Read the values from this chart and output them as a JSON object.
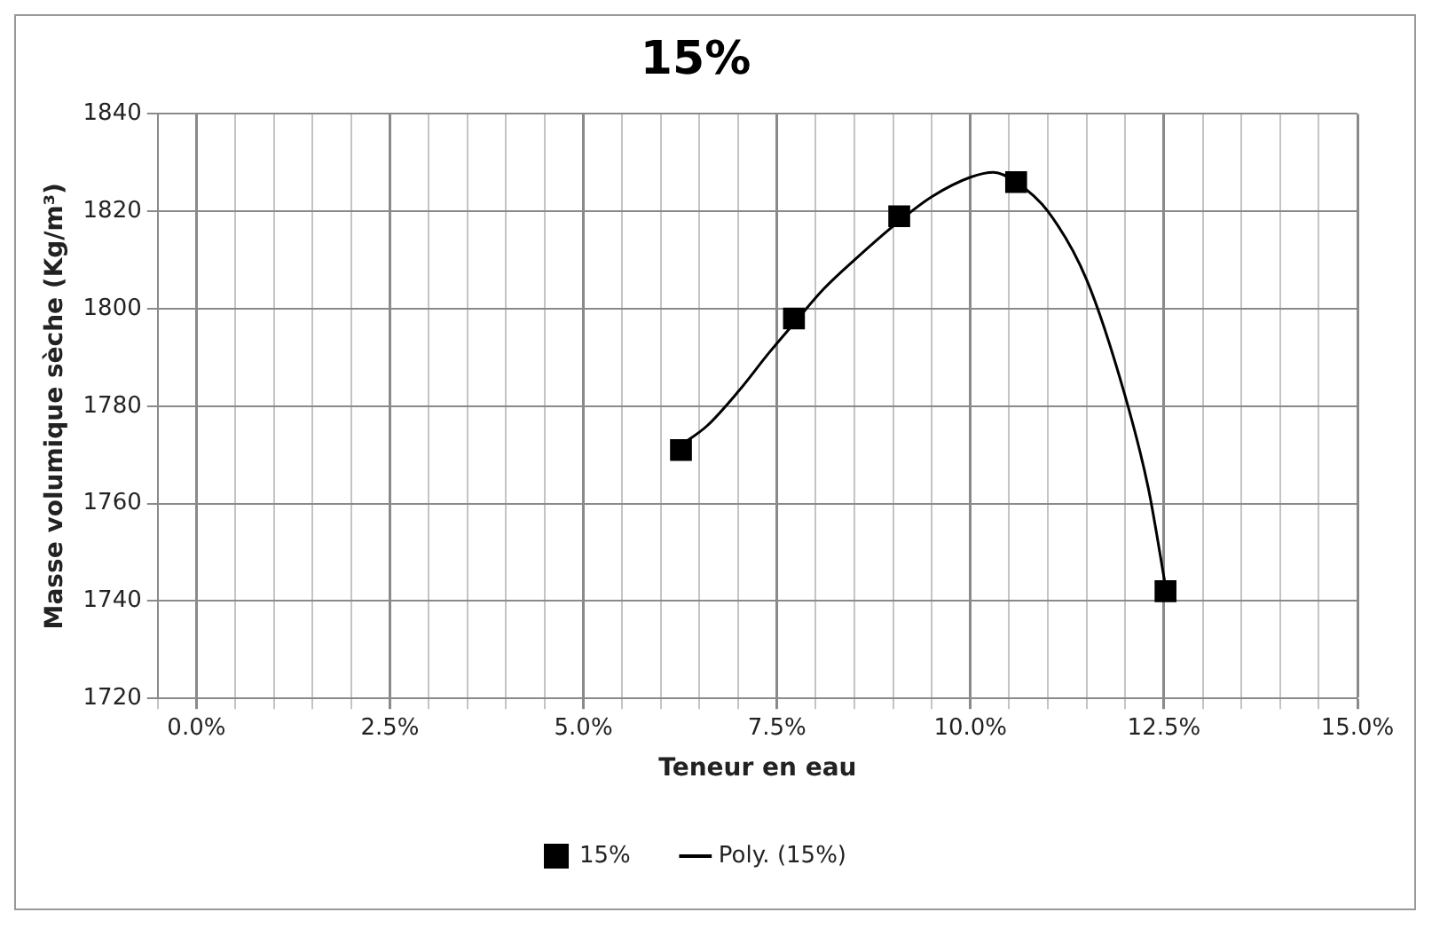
{
  "chart_data": {
    "type": "scatter",
    "title": "15%",
    "xlabel": "Teneur en eau",
    "ylabel": "Masse volumique sèche (Kg/m³)",
    "xlim": [
      -0.5,
      15
    ],
    "xticks": [
      {
        "value": -0.5,
        "label": null
      },
      {
        "value": 0,
        "label": "0.0%"
      },
      {
        "value": 0.5,
        "label": null
      },
      {
        "value": 1,
        "label": null
      },
      {
        "value": 1.5,
        "label": null
      },
      {
        "value": 2,
        "label": null
      },
      {
        "value": 2.5,
        "label": "2.5%"
      },
      {
        "value": 3,
        "label": null
      },
      {
        "value": 3.5,
        "label": null
      },
      {
        "value": 4,
        "label": null
      },
      {
        "value": 4.5,
        "label": null
      },
      {
        "value": 5,
        "label": "5.0%"
      },
      {
        "value": 5.5,
        "label": null
      },
      {
        "value": 6,
        "label": null
      },
      {
        "value": 6.5,
        "label": null
      },
      {
        "value": 7,
        "label": null
      },
      {
        "value": 7.5,
        "label": "7.5%"
      },
      {
        "value": 8,
        "label": null
      },
      {
        "value": 8.5,
        "label": null
      },
      {
        "value": 9,
        "label": null
      },
      {
        "value": 9.5,
        "label": null
      },
      {
        "value": 10,
        "label": "10.0%"
      },
      {
        "value": 10.5,
        "label": null
      },
      {
        "value": 11,
        "label": null
      },
      {
        "value": 11.5,
        "label": null
      },
      {
        "value": 12,
        "label": null
      },
      {
        "value": 12.5,
        "label": "12.5%"
      },
      {
        "value": 13,
        "label": null
      },
      {
        "value": 13.5,
        "label": null
      },
      {
        "value": 14,
        "label": null
      },
      {
        "value": 14.5,
        "label": null
      },
      {
        "value": 15,
        "label": "15.0%"
      }
    ],
    "ylim": [
      1720,
      1840
    ],
    "yticks": [
      1720,
      1740,
      1760,
      1780,
      1800,
      1820,
      1840
    ],
    "grid": true,
    "legend": "bottom",
    "series": [
      {
        "name": "15%",
        "type": "scatter",
        "marker": "square",
        "color": "#000000",
        "x": [
          6.26,
          7.72,
          9.08,
          10.59,
          12.52
        ],
        "values": [
          1771,
          1798,
          1819,
          1826,
          1742
        ]
      },
      {
        "name": "Poly. (15%)",
        "type": "line",
        "marker": "none",
        "line_style": "solid",
        "color": "#000000",
        "x": [
          6.26,
          6.6,
          7,
          7.4,
          7.72,
          8.1,
          8.5,
          9.08,
          9.5,
          10,
          10.3,
          10.59,
          11,
          11.5,
          12,
          12.3,
          12.52
        ],
        "values": [
          1772,
          1776,
          1783,
          1791,
          1797,
          1804,
          1810,
          1818,
          1823,
          1827,
          1828,
          1826,
          1820,
          1806,
          1782,
          1763,
          1743
        ]
      }
    ]
  }
}
